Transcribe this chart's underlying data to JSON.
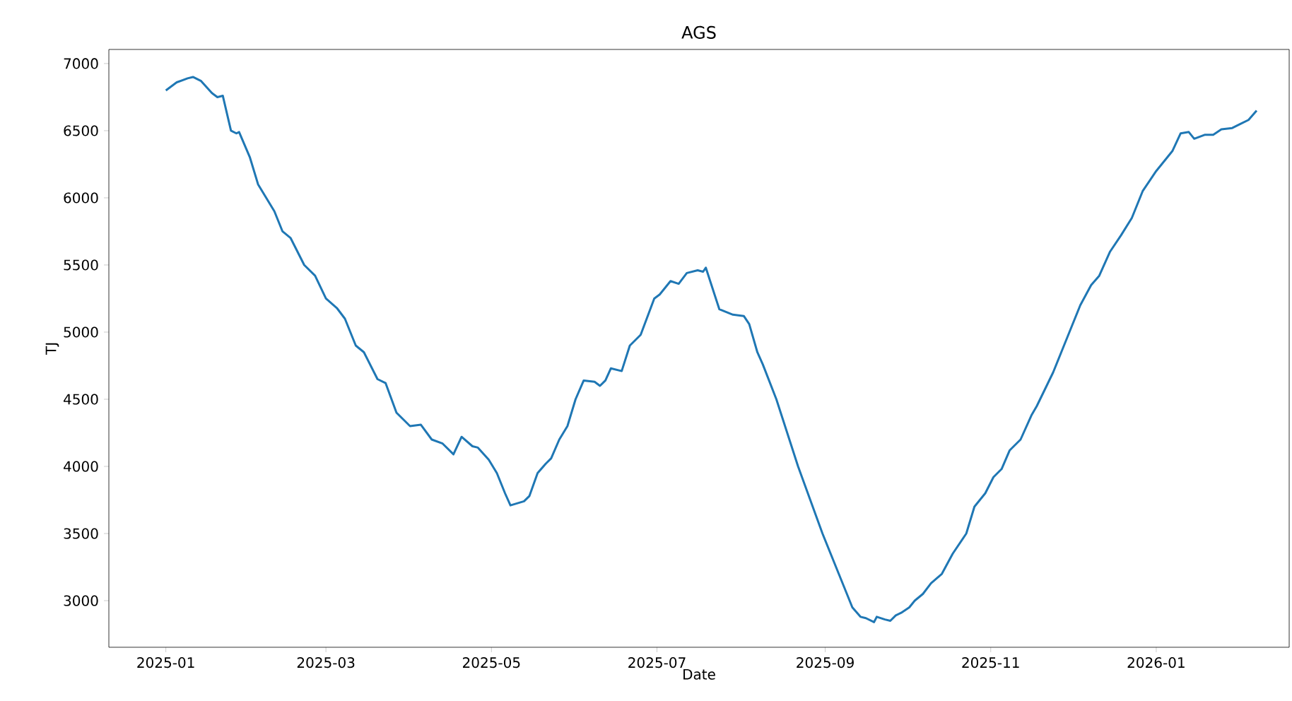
{
  "chart_data": {
    "type": "line",
    "title": "AGS",
    "xlabel": "Date",
    "ylabel": "TJ",
    "xlim": [
      "2024-12-11",
      "2026-02-19"
    ],
    "ylim": [
      2653,
      7105
    ],
    "xticks": [
      {
        "value": "2025-01-01",
        "label": "2025-01"
      },
      {
        "value": "2025-03-01",
        "label": "2025-03"
      },
      {
        "value": "2025-05-01",
        "label": "2025-05"
      },
      {
        "value": "2025-07-01",
        "label": "2025-07"
      },
      {
        "value": "2025-09-01",
        "label": "2025-09"
      },
      {
        "value": "2025-11-01",
        "label": "2025-11"
      },
      {
        "value": "2026-01-01",
        "label": "2026-01"
      }
    ],
    "yticks": [
      3000,
      3500,
      4000,
      4500,
      5000,
      5500,
      6000,
      6500,
      7000
    ],
    "grid": false,
    "legend": false,
    "marker": "none",
    "line_style": "solid",
    "x": [
      "2025-01-01",
      "2025-01-05",
      "2025-01-09",
      "2025-01-11",
      "2025-01-14",
      "2025-01-18",
      "2025-01-20",
      "2025-01-22",
      "2025-01-25",
      "2025-01-27",
      "2025-01-28",
      "2025-02-01",
      "2025-02-04",
      "2025-02-10",
      "2025-02-13",
      "2025-02-16",
      "2025-02-21",
      "2025-02-25",
      "2025-03-01",
      "2025-03-05",
      "2025-03-08",
      "2025-03-12",
      "2025-03-15",
      "2025-03-20",
      "2025-03-23",
      "2025-03-27",
      "2025-04-01",
      "2025-04-05",
      "2025-04-09",
      "2025-04-13",
      "2025-04-17",
      "2025-04-20",
      "2025-04-24",
      "2025-04-26",
      "2025-04-30",
      "2025-05-03",
      "2025-05-06",
      "2025-05-08",
      "2025-05-13",
      "2025-05-15",
      "2025-05-18",
      "2025-05-21",
      "2025-05-23",
      "2025-05-26",
      "2025-05-29",
      "2025-06-01",
      "2025-06-04",
      "2025-06-08",
      "2025-06-10",
      "2025-06-12",
      "2025-06-14",
      "2025-06-18",
      "2025-06-21",
      "2025-06-25",
      "2025-06-30",
      "2025-07-02",
      "2025-07-06",
      "2025-07-09",
      "2025-07-12",
      "2025-07-16",
      "2025-07-18",
      "2025-07-19",
      "2025-07-24",
      "2025-07-29",
      "2025-08-02",
      "2025-08-04",
      "2025-08-07",
      "2025-08-09",
      "2025-08-14",
      "2025-08-22",
      "2025-08-31",
      "2025-09-06",
      "2025-09-08",
      "2025-09-11",
      "2025-09-14",
      "2025-09-16",
      "2025-09-19",
      "2025-09-20",
      "2025-09-23",
      "2025-09-25",
      "2025-09-27",
      "2025-09-29",
      "2025-10-02",
      "2025-10-04",
      "2025-10-07",
      "2025-10-10",
      "2025-10-14",
      "2025-10-18",
      "2025-10-23",
      "2025-10-26",
      "2025-10-30",
      "2025-11-02",
      "2025-11-05",
      "2025-11-08",
      "2025-11-12",
      "2025-11-16",
      "2025-11-18",
      "2025-11-24",
      "2025-11-27",
      "2025-12-01",
      "2025-12-04",
      "2025-12-08",
      "2025-12-11",
      "2025-12-15",
      "2025-12-19",
      "2025-12-23",
      "2025-12-27",
      "2026-01-01",
      "2026-01-05",
      "2026-01-07",
      "2026-01-10",
      "2026-01-13",
      "2026-01-15",
      "2026-01-19",
      "2026-01-22",
      "2026-01-25",
      "2026-01-29",
      "2026-02-01",
      "2026-02-04",
      "2026-02-07"
    ],
    "series": [
      {
        "color": "#1f77b4",
        "values": [
          6800,
          6860,
          6890,
          6900,
          6870,
          6780,
          6750,
          6760,
          6500,
          6480,
          6490,
          6300,
          6100,
          5900,
          5750,
          5700,
          5500,
          5420,
          5250,
          5180,
          5100,
          4900,
          4850,
          4650,
          4620,
          4400,
          4300,
          4310,
          4200,
          4170,
          4090,
          4220,
          4150,
          4140,
          4050,
          3950,
          3800,
          3710,
          3740,
          3780,
          3950,
          4020,
          4060,
          4200,
          4300,
          4500,
          4640,
          4630,
          4600,
          4640,
          4730,
          4710,
          4900,
          4980,
          5250,
          5280,
          5380,
          5360,
          5440,
          5460,
          5450,
          5480,
          5170,
          5130,
          5120,
          5060,
          4850,
          4760,
          4500,
          4000,
          3500,
          3200,
          3100,
          2950,
          2880,
          2870,
          2840,
          2880,
          2860,
          2850,
          2890,
          2910,
          2950,
          3000,
          3050,
          3130,
          3200,
          3350,
          3500,
          3700,
          3800,
          3920,
          3980,
          4120,
          4200,
          4380,
          4450,
          4700,
          4850,
          5050,
          5200,
          5350,
          5420,
          5600,
          5720,
          5850,
          6050,
          6200,
          6300,
          6350,
          6480,
          6490,
          6440,
          6470,
          6470,
          6510,
          6520,
          6550,
          6580,
          6650
        ]
      }
    ]
  }
}
